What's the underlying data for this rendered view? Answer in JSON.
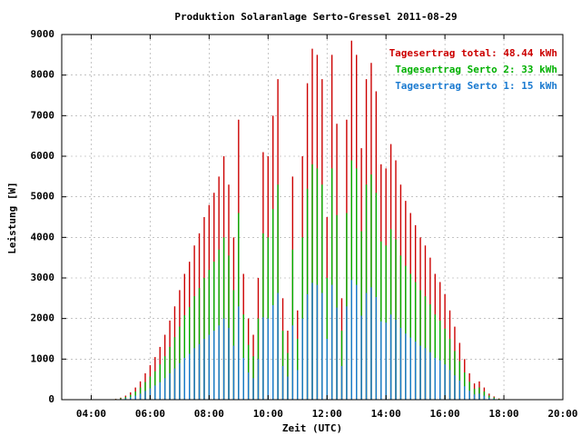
{
  "chart_data": {
    "type": "impulse",
    "title": "Produktion Solaranlage Serto-Gressel 2011-08-29",
    "x_label": "Zeit (UTC)",
    "y_label": "Leistung [W]",
    "xlim": [
      180,
      1200
    ],
    "ylim": [
      0,
      9000
    ],
    "xticks": [
      {
        "value": 240,
        "label": "04:00"
      },
      {
        "value": 360,
        "label": "06:00"
      },
      {
        "value": 480,
        "label": "08:00"
      },
      {
        "value": 600,
        "label": "10:00"
      },
      {
        "value": 720,
        "label": "12:00"
      },
      {
        "value": 840,
        "label": "14:00"
      },
      {
        "value": 960,
        "label": "16:00"
      },
      {
        "value": 1080,
        "label": "18:00"
      },
      {
        "value": 1200,
        "label": "20:00"
      }
    ],
    "yticks": [
      0,
      1000,
      2000,
      3000,
      4000,
      5000,
      6000,
      7000,
      8000,
      9000
    ],
    "grid": true,
    "legend": "top-right",
    "x": [
      290,
      300,
      310,
      320,
      330,
      340,
      350,
      360,
      370,
      380,
      390,
      400,
      410,
      420,
      430,
      440,
      450,
      460,
      470,
      480,
      490,
      500,
      510,
      520,
      530,
      540,
      550,
      560,
      570,
      580,
      590,
      600,
      610,
      620,
      630,
      640,
      650,
      660,
      670,
      680,
      690,
      700,
      710,
      720,
      730,
      740,
      750,
      760,
      770,
      780,
      790,
      800,
      810,
      820,
      830,
      840,
      850,
      860,
      870,
      880,
      890,
      900,
      910,
      920,
      930,
      940,
      950,
      960,
      970,
      980,
      990,
      1000,
      1010,
      1020,
      1030,
      1040,
      1050,
      1060,
      1070
    ],
    "series": [
      {
        "name": "Tagesertrag total: 48.44 kWh",
        "color": "#cc0000",
        "values": [
          20,
          50,
          100,
          180,
          300,
          450,
          650,
          850,
          1050,
          1300,
          1600,
          1950,
          2300,
          2700,
          3100,
          3400,
          3800,
          4100,
          4500,
          4800,
          5100,
          5500,
          6000,
          5300,
          4000,
          6900,
          3100,
          2000,
          1600,
          3000,
          6100,
          6000,
          7000,
          7900,
          2500,
          1700,
          5500,
          2200,
          6000,
          7800,
          8650,
          8500,
          7900,
          4500,
          8500,
          6800,
          2500,
          6900,
          8850,
          8500,
          6200,
          7900,
          8300,
          7600,
          5800,
          5700,
          6300,
          5900,
          5300,
          4900,
          4600,
          4300,
          4000,
          3800,
          3500,
          3100,
          2900,
          2600,
          2200,
          1800,
          1400,
          1000,
          650,
          400,
          450,
          300,
          150,
          80,
          30
        ]
      },
      {
        "name": "Tagesertrag Serto 2: 33 kWh",
        "color": "#00b000",
        "values": [
          15,
          35,
          65,
          120,
          200,
          300,
          435,
          570,
          700,
          870,
          1070,
          1300,
          1540,
          1800,
          2080,
          2280,
          2550,
          2750,
          3000,
          3200,
          3400,
          3700,
          4000,
          3550,
          2700,
          4600,
          2100,
          1350,
          1070,
          2000,
          4100,
          4000,
          4700,
          5300,
          1700,
          1150,
          3700,
          1500,
          4000,
          5200,
          5800,
          5700,
          5300,
          3000,
          5700,
          4550,
          1700,
          4600,
          5900,
          5700,
          4150,
          5300,
          5550,
          5100,
          3900,
          3800,
          4200,
          3950,
          3550,
          3300,
          3100,
          2900,
          2700,
          2550,
          2350,
          2100,
          1950,
          1750,
          1500,
          1200,
          950,
          670,
          440,
          270,
          300,
          200,
          100,
          55,
          20
        ]
      },
      {
        "name": "Tagesertrag Serto 1: 15 kWh",
        "color": "#1a7ad0",
        "values": [
          7,
          17,
          33,
          60,
          100,
          150,
          215,
          280,
          350,
          430,
          530,
          650,
          770,
          900,
          1030,
          1130,
          1270,
          1370,
          1500,
          1600,
          1700,
          1830,
          2000,
          1770,
          1330,
          2300,
          1030,
          670,
          530,
          1000,
          2030,
          2000,
          2330,
          2630,
          830,
          570,
          1830,
          730,
          2000,
          2600,
          2880,
          2830,
          2630,
          1500,
          2830,
          2270,
          830,
          2300,
          2950,
          2830,
          2070,
          2630,
          2770,
          2530,
          1930,
          1900,
          2100,
          1970,
          1770,
          1630,
          1530,
          1430,
          1330,
          1270,
          1170,
          1030,
          970,
          870,
          730,
          600,
          470,
          330,
          220,
          130,
          150,
          100,
          50,
          27,
          10
        ]
      }
    ]
  }
}
